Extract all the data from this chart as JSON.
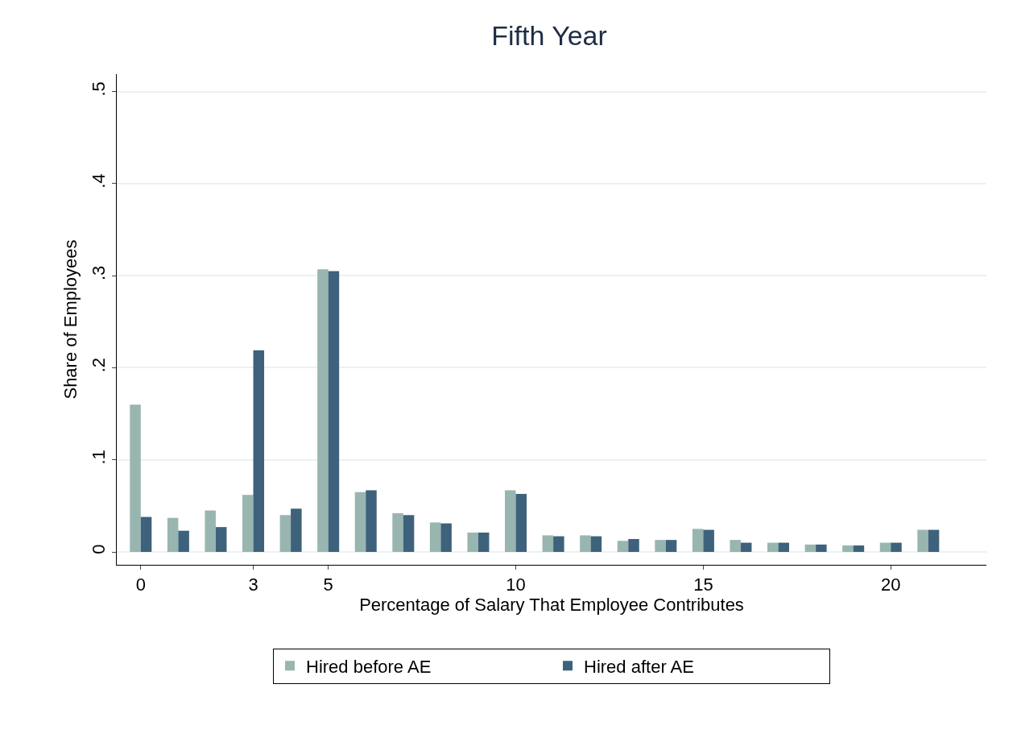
{
  "chart_data": {
    "type": "bar",
    "title": "Fifth Year",
    "xlabel": "Percentage of Salary That Employee Contributes",
    "ylabel": "Share of Employees",
    "x": [
      0,
      1,
      2,
      3,
      4,
      5,
      6,
      7,
      8,
      9,
      10,
      11,
      12,
      13,
      14,
      15,
      16,
      17,
      18,
      19,
      20,
      21
    ],
    "series": [
      {
        "name": "Hired before AE",
        "color": "#99b5b0",
        "values": [
          0.16,
          0.037,
          0.045,
          0.062,
          0.04,
          0.307,
          0.065,
          0.042,
          0.032,
          0.021,
          0.067,
          0.018,
          0.018,
          0.012,
          0.013,
          0.025,
          0.013,
          0.01,
          0.008,
          0.007,
          0.01,
          0.024
        ]
      },
      {
        "name": "Hired after AE",
        "color": "#3e627c",
        "values": [
          0.038,
          0.023,
          0.027,
          0.219,
          0.047,
          0.305,
          0.067,
          0.04,
          0.031,
          0.021,
          0.063,
          0.017,
          0.017,
          0.014,
          0.013,
          0.024,
          0.01,
          0.01,
          0.008,
          0.007,
          0.01,
          0.024
        ]
      }
    ],
    "xlim": [
      -0.64,
      22.55
    ],
    "xticks": [
      0,
      3,
      5,
      10,
      15,
      20
    ],
    "ylim": [
      -0.014,
      0.519
    ],
    "yticks": [
      {
        "value": 0,
        "label": "0"
      },
      {
        "value": 0.1,
        "label": ".1"
      },
      {
        "value": 0.2,
        "label": ".2"
      },
      {
        "value": 0.3,
        "label": ".3"
      },
      {
        "value": 0.4,
        "label": ".4"
      },
      {
        "value": 0.5,
        "label": ".5"
      }
    ],
    "grid": "y",
    "legend": "bottom"
  }
}
